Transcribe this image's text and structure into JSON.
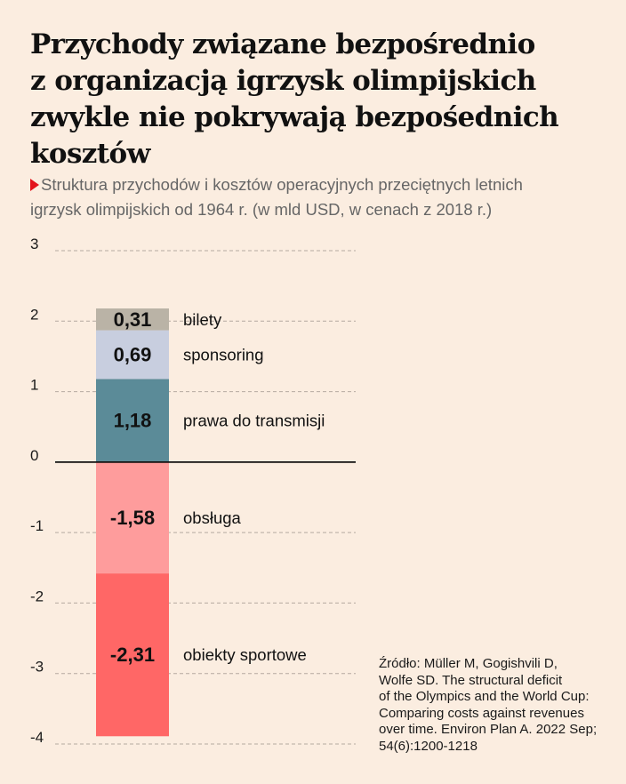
{
  "header": {
    "title_lines": [
      "Przychody związane bezpośrednio",
      "z organizacją igrzysk olimpijskich",
      "zwykle nie pokrywają bezpośednich",
      "kosztów"
    ],
    "subtitle_lines": [
      "Struktura przychodów i kosztów operacyjnych przeciętnych letnich",
      "igrzysk olimpijskich od 1964 r. (w mld USD, w cenach z 2018 r.)"
    ]
  },
  "chart_data": {
    "type": "bar",
    "subtype": "stacked-single-column",
    "y_ticks": [
      "3",
      "2",
      "1",
      "0",
      "-1",
      "-2",
      "-3",
      "-4"
    ],
    "ylim": [
      -4,
      3
    ],
    "grid": true,
    "series": [
      {
        "name": "prawa do transmisji",
        "value": 1.18,
        "label": "1,18",
        "color": "#5b8b98"
      },
      {
        "name": "sponsoring",
        "value": 0.69,
        "label": "0,69",
        "color": "#c8cedf"
      },
      {
        "name": "bilety",
        "value": 0.31,
        "label": "0,31",
        "color": "#bab3a6"
      },
      {
        "name": "obsługa",
        "value": -1.58,
        "label": "-1,58",
        "color": "#fe9c9c"
      },
      {
        "name": "obiekty sportowe",
        "value": -2.31,
        "label": "-2,31",
        "color": "#ff6766"
      }
    ]
  },
  "source": {
    "lines": [
      "Źródło: Müller M, Gogishvili D,",
      "Wolfe SD. The structural deficit",
      "of the Olympics and the World Cup:",
      "Comparing costs against revenues",
      "over time. Environ Plan A. 2022 Sep;",
      "54(6):1200-1218"
    ]
  }
}
